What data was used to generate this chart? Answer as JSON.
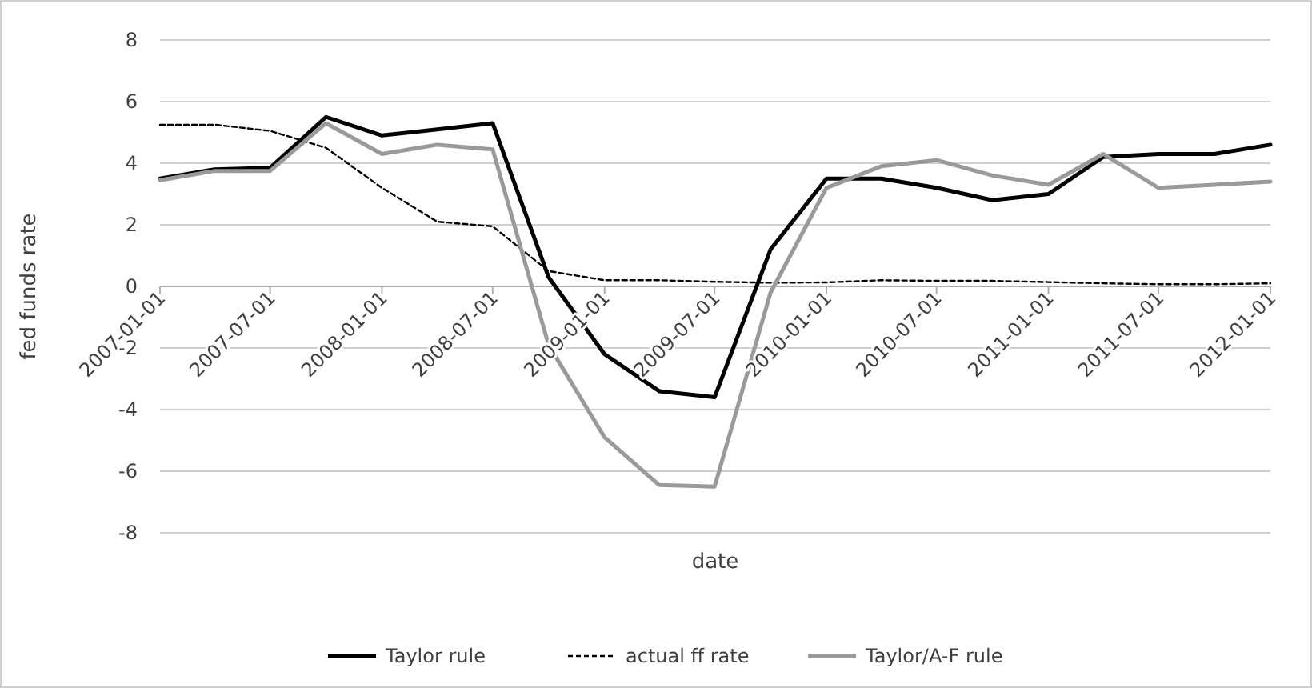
{
  "chart_data": {
    "type": "line",
    "xlabel": "date",
    "ylabel": "fed funds rate",
    "x": [
      "2007-01-01",
      "2007-04-01",
      "2007-07-01",
      "2007-10-01",
      "2008-01-01",
      "2008-04-01",
      "2008-07-01",
      "2008-10-01",
      "2009-01-01",
      "2009-04-01",
      "2009-07-01",
      "2009-10-01",
      "2010-01-01",
      "2010-04-01",
      "2010-07-01",
      "2010-10-01",
      "2011-01-01",
      "2011-04-01",
      "2011-07-01",
      "2011-10-01",
      "2012-01-01"
    ],
    "series": [
      {
        "name": "Taylor rule",
        "color": "#000000",
        "line_style": "solid",
        "values": [
          3.5,
          3.8,
          3.85,
          5.5,
          4.9,
          5.1,
          5.3,
          0.3,
          -2.2,
          -3.4,
          -3.6,
          1.2,
          3.5,
          3.5,
          3.2,
          2.8,
          3.0,
          4.2,
          4.3,
          4.3,
          4.6
        ]
      },
      {
        "name": "actual ff rate",
        "color": "#000000",
        "line_style": "dashed",
        "values": [
          5.25,
          5.25,
          5.05,
          4.5,
          3.2,
          2.1,
          1.95,
          0.5,
          0.2,
          0.2,
          0.15,
          0.12,
          0.13,
          0.2,
          0.18,
          0.18,
          0.14,
          0.1,
          0.07,
          0.07,
          0.1
        ]
      },
      {
        "name": "Taylor/A-F rule",
        "color": "#9a9a9a",
        "line_style": "solid",
        "values": [
          3.45,
          3.75,
          3.75,
          5.3,
          4.3,
          4.6,
          4.45,
          -1.9,
          -4.9,
          -6.45,
          -6.5,
          -0.2,
          3.2,
          3.9,
          4.1,
          3.6,
          3.3,
          4.3,
          3.2,
          3.3,
          3.4
        ]
      }
    ],
    "xlim": [
      "2007-01-01",
      "2012-01-01"
    ],
    "xticks": [
      "2007-01-01",
      "2007-07-01",
      "2008-01-01",
      "2008-07-01",
      "2009-01-01",
      "2009-07-01",
      "2010-01-01",
      "2010-07-01",
      "2011-01-01",
      "2011-07-01",
      "2012-01-01"
    ],
    "ylim": [
      -8,
      8
    ],
    "yticks": [
      -8,
      -6,
      -4,
      -2,
      0,
      2,
      4,
      6,
      8
    ],
    "grid": "y",
    "legend": "bottom",
    "marker": "none"
  }
}
